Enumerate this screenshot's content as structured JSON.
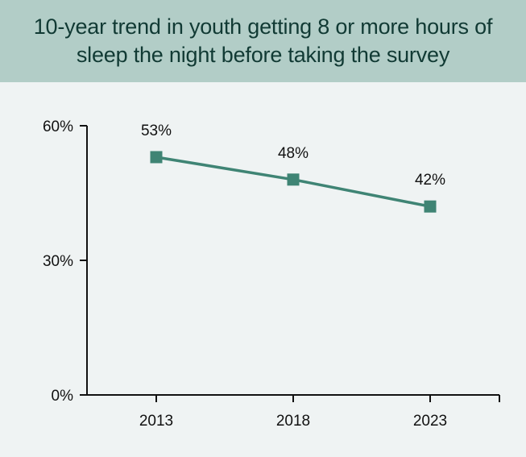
{
  "chart_data": {
    "type": "line",
    "title": "10-year trend in youth getting 8 or more hours of sleep the night before taking the survey",
    "xlabel": "",
    "ylabel": "",
    "categories": [
      "2013",
      "2018",
      "2023"
    ],
    "series": [
      {
        "values": [
          53,
          48,
          42
        ],
        "data_labels": [
          "53%",
          "48%",
          "42%"
        ]
      }
    ],
    "ylim": [
      0,
      60
    ],
    "yticks": [
      0,
      30,
      60
    ],
    "ytick_labels": [
      "0%",
      "30%",
      "60%"
    ],
    "grid": false,
    "marker": "square"
  },
  "colors": {
    "header_bg": "#b2cdc7",
    "title_text": "#113a34",
    "plot_bg": "#eff3f3",
    "series_line": "#3f8474",
    "axis": "#111111"
  }
}
